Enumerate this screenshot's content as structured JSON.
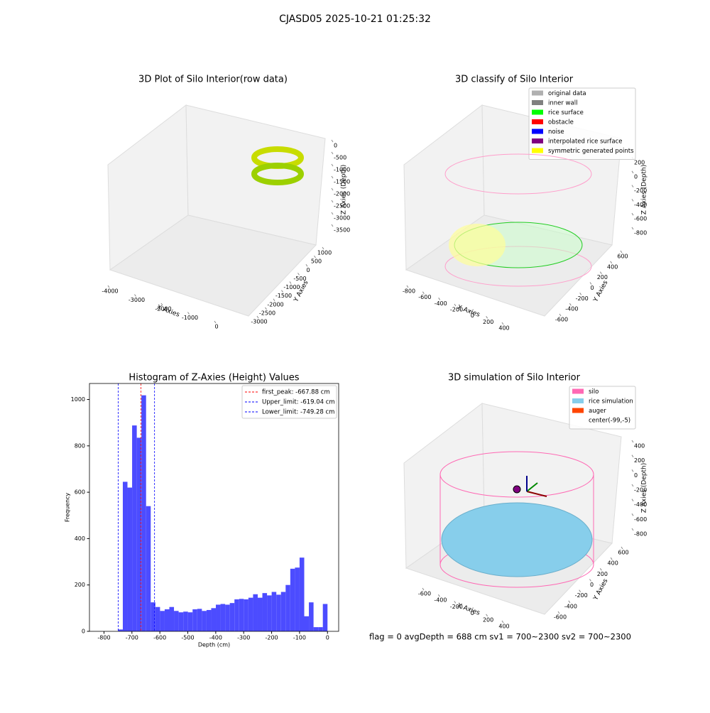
{
  "title": "CJASD05 2025-10-21 01:25:32",
  "footer": "flag = 0     avgDepth = 688 cm  sv1 = 700~2300  sv2 = 700~2300",
  "chart_data": [
    {
      "type": "scatter3d",
      "title": "3D Plot of Silo Interior(row data)",
      "xlabel": "X Axies",
      "ylabel": "Y Axies",
      "zlabel": "Z Axies (Depth)",
      "xticks": [
        -4000,
        -3000,
        -2000,
        -1000,
        0
      ],
      "yticks": [
        -3000,
        -2500,
        -2000,
        -1500,
        -1000,
        -500,
        0,
        500,
        1000
      ],
      "zticks": [
        -3500,
        -3000,
        -2500,
        -2000,
        -1500,
        -1000,
        -500,
        0
      ]
    },
    {
      "type": "scatter3d",
      "title": "3D classify of Silo Interior",
      "xlabel": "X Axies",
      "ylabel": "Y Axies",
      "zlabel": "Z Axies (Depth)",
      "xticks": [
        -800,
        -600,
        -400,
        -200,
        0,
        200,
        400
      ],
      "yticks": [
        -600,
        -400,
        -200,
        0,
        200,
        400,
        600
      ],
      "zticks": [
        -800,
        -600,
        -400,
        -200,
        0,
        200
      ],
      "series": [
        {
          "name": "original data",
          "color": "#b0b0b0"
        },
        {
          "name": "inner wall",
          "color": "#808080"
        },
        {
          "name": "rice surface",
          "color": "#00ff00"
        },
        {
          "name": "obstacle",
          "color": "#ff0000"
        },
        {
          "name": "noise",
          "color": "#0000ff"
        },
        {
          "name": "interpolated rice surface",
          "color": "#800080"
        },
        {
          "name": "symmetric generated points",
          "color": "#ffff00"
        }
      ]
    },
    {
      "type": "histogram",
      "title": "Histogram of Z-Axies (Height) Values",
      "xlabel": "Depth (cm)",
      "ylabel": "Frequency",
      "color": "#4c4cff",
      "bins": [
        -749.28,
        -732.63,
        -715.98,
        -699.33,
        -682.68,
        -666.03,
        -649.38,
        -632.73,
        -616.08,
        -599.43,
        -582.77,
        -566.12,
        -549.47,
        -532.82,
        -516.17,
        -499.52,
        -482.87,
        -466.22,
        -449.57,
        -432.92,
        -416.27,
        -399.62,
        -382.97,
        -366.32,
        -349.67,
        -333.01,
        -316.36,
        -299.71,
        -283.06,
        -266.41,
        -249.76,
        -233.11,
        -216.46,
        -199.81,
        -183.16,
        -166.51,
        -149.86,
        -133.21,
        -116.56,
        -99.91,
        -83.25,
        -66.6,
        -49.95,
        -33.3,
        -16.65,
        0
      ],
      "values": [
        8,
        645,
        620,
        888,
        835,
        1018,
        540,
        125,
        105,
        88,
        95,
        105,
        88,
        82,
        85,
        82,
        95,
        97,
        88,
        92,
        100,
        115,
        118,
        115,
        122,
        138,
        140,
        138,
        145,
        160,
        145,
        165,
        155,
        170,
        158,
        170,
        200,
        270,
        275,
        318,
        65,
        125,
        18,
        18,
        118
      ],
      "lines": [
        {
          "name": "first_peak: -667.88 cm",
          "value": -667.88,
          "color": "#ff0000"
        },
        {
          "name": "Upper_limit: -619.04 cm",
          "value": -619.04,
          "color": "#0000ff"
        },
        {
          "name": "Lower_limit: -749.28 cm",
          "value": -749.28,
          "color": "#0000ff"
        }
      ],
      "xlim": [
        -852,
        40
      ],
      "ylim": [
        0,
        1069
      ],
      "xticks": [
        -800,
        -700,
        -600,
        -500,
        -400,
        -300,
        -200,
        -100,
        0
      ],
      "yticks": [
        0,
        200,
        400,
        600,
        800,
        1000
      ]
    },
    {
      "type": "surface3d",
      "title": "3D simulation of Silo Interior",
      "xlabel": "X Axies",
      "ylabel": "Y Axies",
      "zlabel": "Z Axies (Depth)",
      "xticks": [
        -600,
        -400,
        -200,
        0,
        200,
        400
      ],
      "yticks": [
        -600,
        -400,
        -200,
        0,
        200,
        400,
        600
      ],
      "zticks": [
        -800,
        -600,
        -400,
        -200,
        0,
        200,
        400
      ],
      "series": [
        {
          "name": "silo",
          "color": "#ff69b4"
        },
        {
          "name": "rice simulation",
          "color": "#87ceeb"
        },
        {
          "name": "auger",
          "color": "#ff4500"
        },
        {
          "name": "center(-99,-5)",
          "color": "#ffffff"
        }
      ]
    }
  ]
}
